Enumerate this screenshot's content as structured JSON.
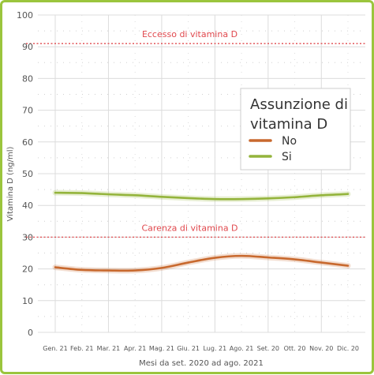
{
  "chart_data": {
    "type": "line",
    "xlabel": "Mesi da set. 2020 ad ago. 2021",
    "ylabel": "Vitamina D (ng/ml)",
    "categories": [
      "Gen. 21",
      "Feb. 21",
      "Mar. 21",
      "Apr. 21",
      "Mag. 21",
      "Giu. 21",
      "Lug. 21",
      "Ago. 21",
      "Set. 20",
      "Ott. 20",
      "Nov. 20",
      "Dic. 20"
    ],
    "ylim": [
      0,
      100
    ],
    "yticks": [
      0,
      10,
      20,
      30,
      40,
      50,
      60,
      70,
      80,
      90,
      100
    ],
    "grid": true,
    "legend": {
      "title": "Assunzione di vitamina D",
      "placement": "right"
    },
    "series": [
      {
        "name": "No",
        "color": "#c8692e",
        "values": [
          20.5,
          19.7,
          19.5,
          19.5,
          20.3,
          22.0,
          23.5,
          24.1,
          23.6,
          23.0,
          22.0,
          21.0
        ]
      },
      {
        "name": "Si",
        "color": "#94b43c",
        "values": [
          44.0,
          43.9,
          43.5,
          43.2,
          42.7,
          42.3,
          42.0,
          42.0,
          42.2,
          42.6,
          43.2,
          43.6
        ]
      }
    ],
    "reference_lines": [
      {
        "label": "Eccesso di vitamina D",
        "y": 91,
        "color": "#e0484d"
      },
      {
        "label": "Carenza di vitamina D",
        "y": 30,
        "color": "#e0484d"
      }
    ],
    "colors": {
      "axis_text": "#555555",
      "grid": "#dddddd",
      "frame": "#9bc53d"
    }
  }
}
